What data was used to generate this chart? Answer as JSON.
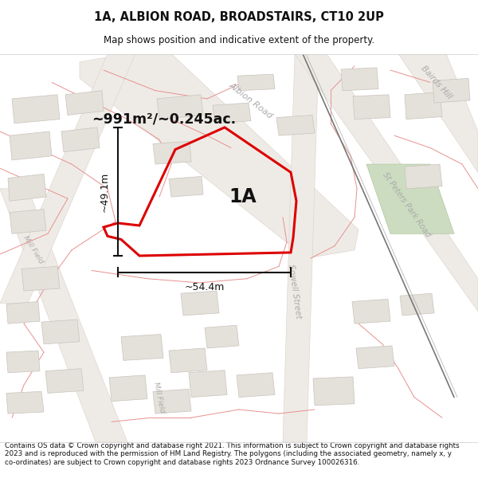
{
  "title": "1A, ALBION ROAD, BROADSTAIRS, CT10 2UP",
  "subtitle": "Map shows position and indicative extent of the property.",
  "footer": "Contains OS data © Crown copyright and database right 2021. This information is subject to Crown copyright and database rights 2023 and is reproduced with the permission of HM Land Registry. The polygons (including the associated geometry, namely x, y co-ordinates) are subject to Crown copyright and database rights 2023 Ordnance Survey 100026316.",
  "area_label": "~991m²/~0.245ac.",
  "plot_label": "1A",
  "dim_height": "~49.1m",
  "dim_width": "~54.4m",
  "map_bg": "#f8f6f3",
  "road_fill": "#eeebe6",
  "road_edge": "#d8d0c8",
  "plot_edge": "#dd0000",
  "green_fill": "#ccdcc0",
  "green_edge": "#b0c8a0",
  "building_fill": "#e4e0da",
  "building_edge": "#c8c4bc",
  "cadastral_color": "#e89090",
  "road_label_color": "#aaaaaa",
  "railway_color": "#888888",
  "dim_line_color": "#111111",
  "label_color": "#111111"
}
